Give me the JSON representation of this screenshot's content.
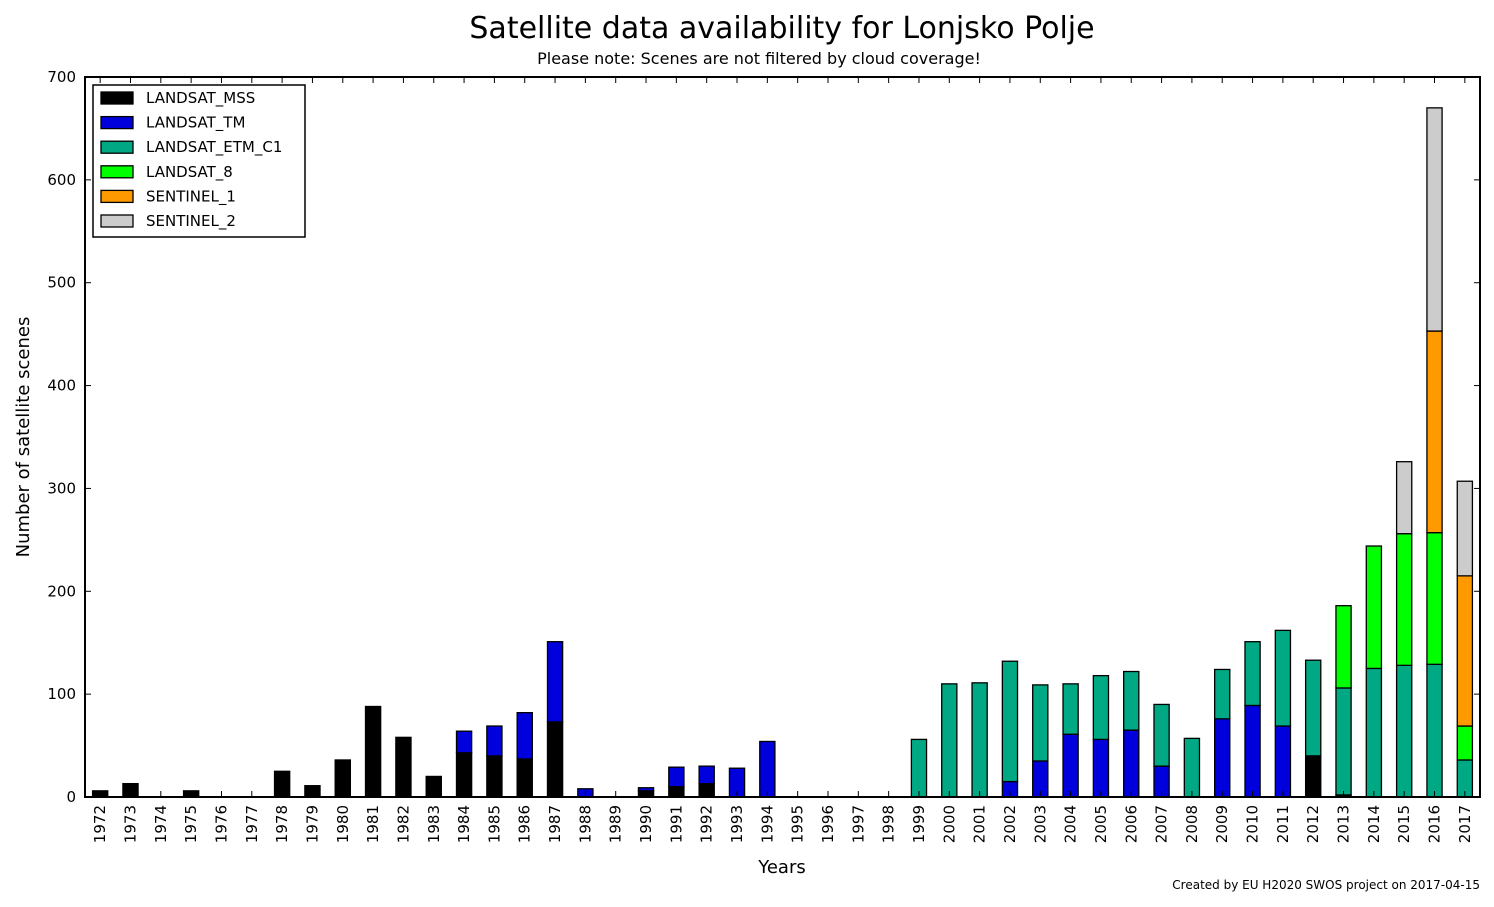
{
  "chart_data": {
    "type": "bar",
    "stacked": true,
    "title": "Satellite data availability for Lonjsko Polje",
    "subtitle": "Please note: Scenes are not filtered by cloud coverage!",
    "xlabel": "Years",
    "ylabel": "Number of satellite scenes",
    "ylim": [
      0,
      700
    ],
    "yticks": [
      "0",
      "100",
      "200",
      "300",
      "400",
      "500",
      "600",
      "700"
    ],
    "grid": false,
    "legend_position": "top-left",
    "credit": "Created by EU H2020 SWOS project on 2017-04-15",
    "categories": [
      "1972",
      "1973",
      "1974",
      "1975",
      "1976",
      "1977",
      "1978",
      "1979",
      "1980",
      "1981",
      "1982",
      "1983",
      "1984",
      "1985",
      "1986",
      "1987",
      "1988",
      "1989",
      "1990",
      "1991",
      "1992",
      "1993",
      "1994",
      "1995",
      "1996",
      "1997",
      "1998",
      "1999",
      "2000",
      "2001",
      "2002",
      "2003",
      "2004",
      "2005",
      "2006",
      "2007",
      "2008",
      "2009",
      "2010",
      "2011",
      "2012",
      "2013",
      "2014",
      "2015",
      "2016",
      "2017"
    ],
    "series": [
      {
        "name": "LANDSAT_MSS",
        "color": "#000000",
        "values": [
          6,
          13,
          0,
          6,
          0,
          0,
          25,
          11,
          36,
          88,
          58,
          20,
          43,
          40,
          37,
          73,
          0,
          0,
          6,
          10,
          13,
          0,
          0,
          0,
          0,
          0,
          0,
          0,
          0,
          0,
          0,
          0,
          0,
          0,
          0,
          0,
          0,
          0,
          0,
          0,
          40,
          2,
          0,
          0,
          0,
          0
        ]
      },
      {
        "name": "LANDSAT_TM",
        "color": "#0000dd",
        "values": [
          0,
          0,
          0,
          0,
          0,
          0,
          0,
          0,
          0,
          0,
          0,
          0,
          21,
          29,
          45,
          78,
          8,
          0,
          3,
          19,
          17,
          28,
          54,
          0,
          0,
          0,
          0,
          0,
          0,
          0,
          15,
          35,
          61,
          56,
          65,
          30,
          0,
          76,
          89,
          69,
          0,
          0,
          0,
          0,
          0,
          0
        ]
      },
      {
        "name": "LANDSAT_ETM_C1",
        "color": "#00a884",
        "values": [
          0,
          0,
          0,
          0,
          0,
          0,
          0,
          0,
          0,
          0,
          0,
          0,
          0,
          0,
          0,
          0,
          0,
          0,
          0,
          0,
          0,
          0,
          0,
          0,
          0,
          0,
          0,
          56,
          110,
          111,
          117,
          74,
          49,
          62,
          57,
          60,
          57,
          48,
          62,
          93,
          93,
          104,
          125,
          128,
          129,
          36
        ]
      },
      {
        "name": "LANDSAT_8",
        "color": "#00ff00",
        "values": [
          0,
          0,
          0,
          0,
          0,
          0,
          0,
          0,
          0,
          0,
          0,
          0,
          0,
          0,
          0,
          0,
          0,
          0,
          0,
          0,
          0,
          0,
          0,
          0,
          0,
          0,
          0,
          0,
          0,
          0,
          0,
          0,
          0,
          0,
          0,
          0,
          0,
          0,
          0,
          0,
          0,
          80,
          119,
          128,
          128,
          33
        ]
      },
      {
        "name": "SENTINEL_1",
        "color": "#ff9900",
        "values": [
          0,
          0,
          0,
          0,
          0,
          0,
          0,
          0,
          0,
          0,
          0,
          0,
          0,
          0,
          0,
          0,
          0,
          0,
          0,
          0,
          0,
          0,
          0,
          0,
          0,
          0,
          0,
          0,
          0,
          0,
          0,
          0,
          0,
          0,
          0,
          0,
          0,
          0,
          0,
          0,
          0,
          0,
          0,
          0,
          196,
          146
        ]
      },
      {
        "name": "SENTINEL_2",
        "color": "#cccccc",
        "values": [
          0,
          0,
          0,
          0,
          0,
          0,
          0,
          0,
          0,
          0,
          0,
          0,
          0,
          0,
          0,
          0,
          0,
          0,
          0,
          0,
          0,
          0,
          0,
          0,
          0,
          0,
          0,
          0,
          0,
          0,
          0,
          0,
          0,
          0,
          0,
          0,
          0,
          0,
          0,
          0,
          0,
          0,
          0,
          70,
          217,
          92
        ]
      }
    ]
  }
}
